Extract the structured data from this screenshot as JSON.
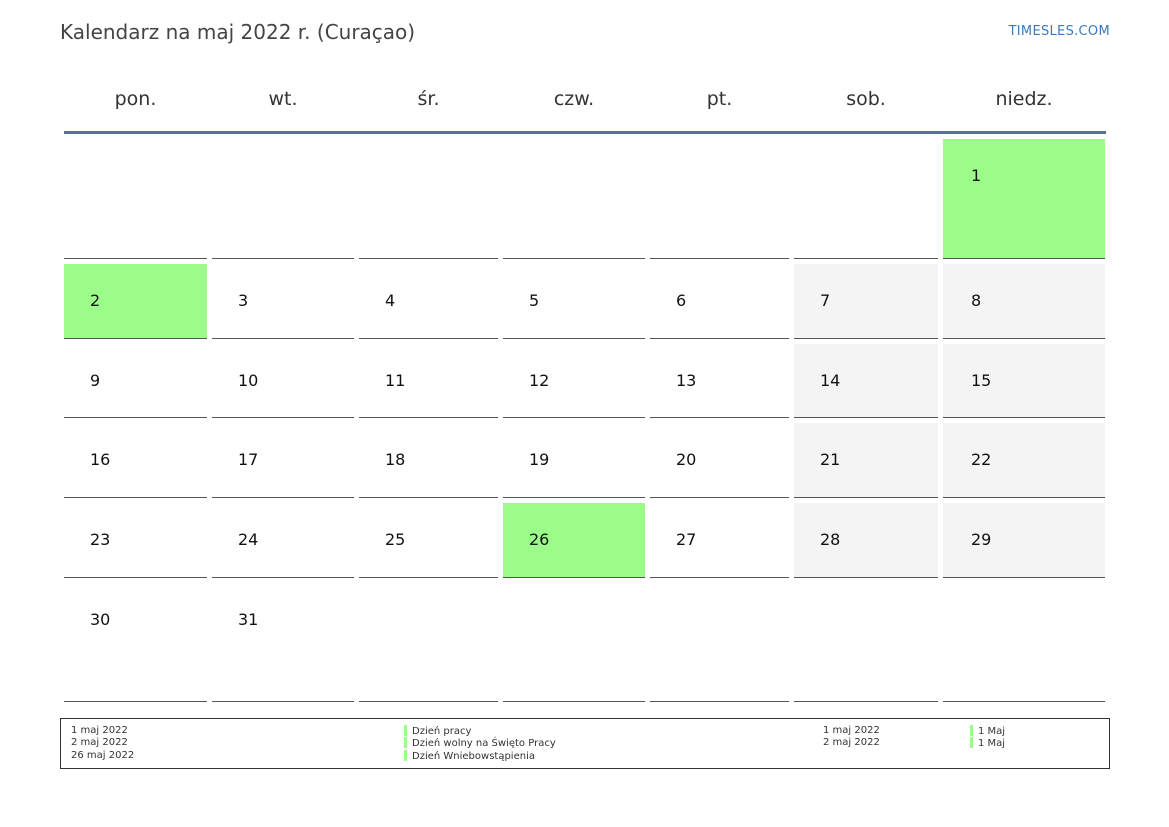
{
  "header": {
    "title": "Kalendarz na maj 2022 r. (Curaçao)",
    "brand": "TIMESLES.COM"
  },
  "weekdays": [
    "pon.",
    "wt.",
    "śr.",
    "czw.",
    "pt.",
    "sob.",
    "niedz."
  ],
  "weeks": [
    [
      null,
      null,
      null,
      null,
      null,
      null,
      "1"
    ],
    [
      "2",
      "3",
      "4",
      "5",
      "6",
      "7",
      "8"
    ],
    [
      "9",
      "10",
      "11",
      "12",
      "13",
      "14",
      "15"
    ],
    [
      "16",
      "17",
      "18",
      "19",
      "20",
      "21",
      "22"
    ],
    [
      "23",
      "24",
      "25",
      "26",
      "27",
      "28",
      "29"
    ],
    [
      "30",
      "31",
      null,
      null,
      null,
      null,
      null
    ]
  ],
  "holiday_days": [
    "1",
    "2",
    "26"
  ],
  "colors": {
    "holiday": "#9cfc8a",
    "weekend": "#f4f4f4",
    "header_rule": "#5a7197",
    "brand": "#3a7ab8"
  },
  "legend": {
    "left_dates": [
      "1 maj 2022",
      "2 maj 2022",
      "26 maj 2022"
    ],
    "left_names": [
      "Dzień pracy",
      "Dzień wolny na Święto Pracy",
      "Dzień Wniebowstąpienia"
    ],
    "right_dates": [
      "1 maj 2022",
      "2 maj 2022"
    ],
    "right_names": [
      "1 Maj",
      "1 Maj"
    ]
  }
}
